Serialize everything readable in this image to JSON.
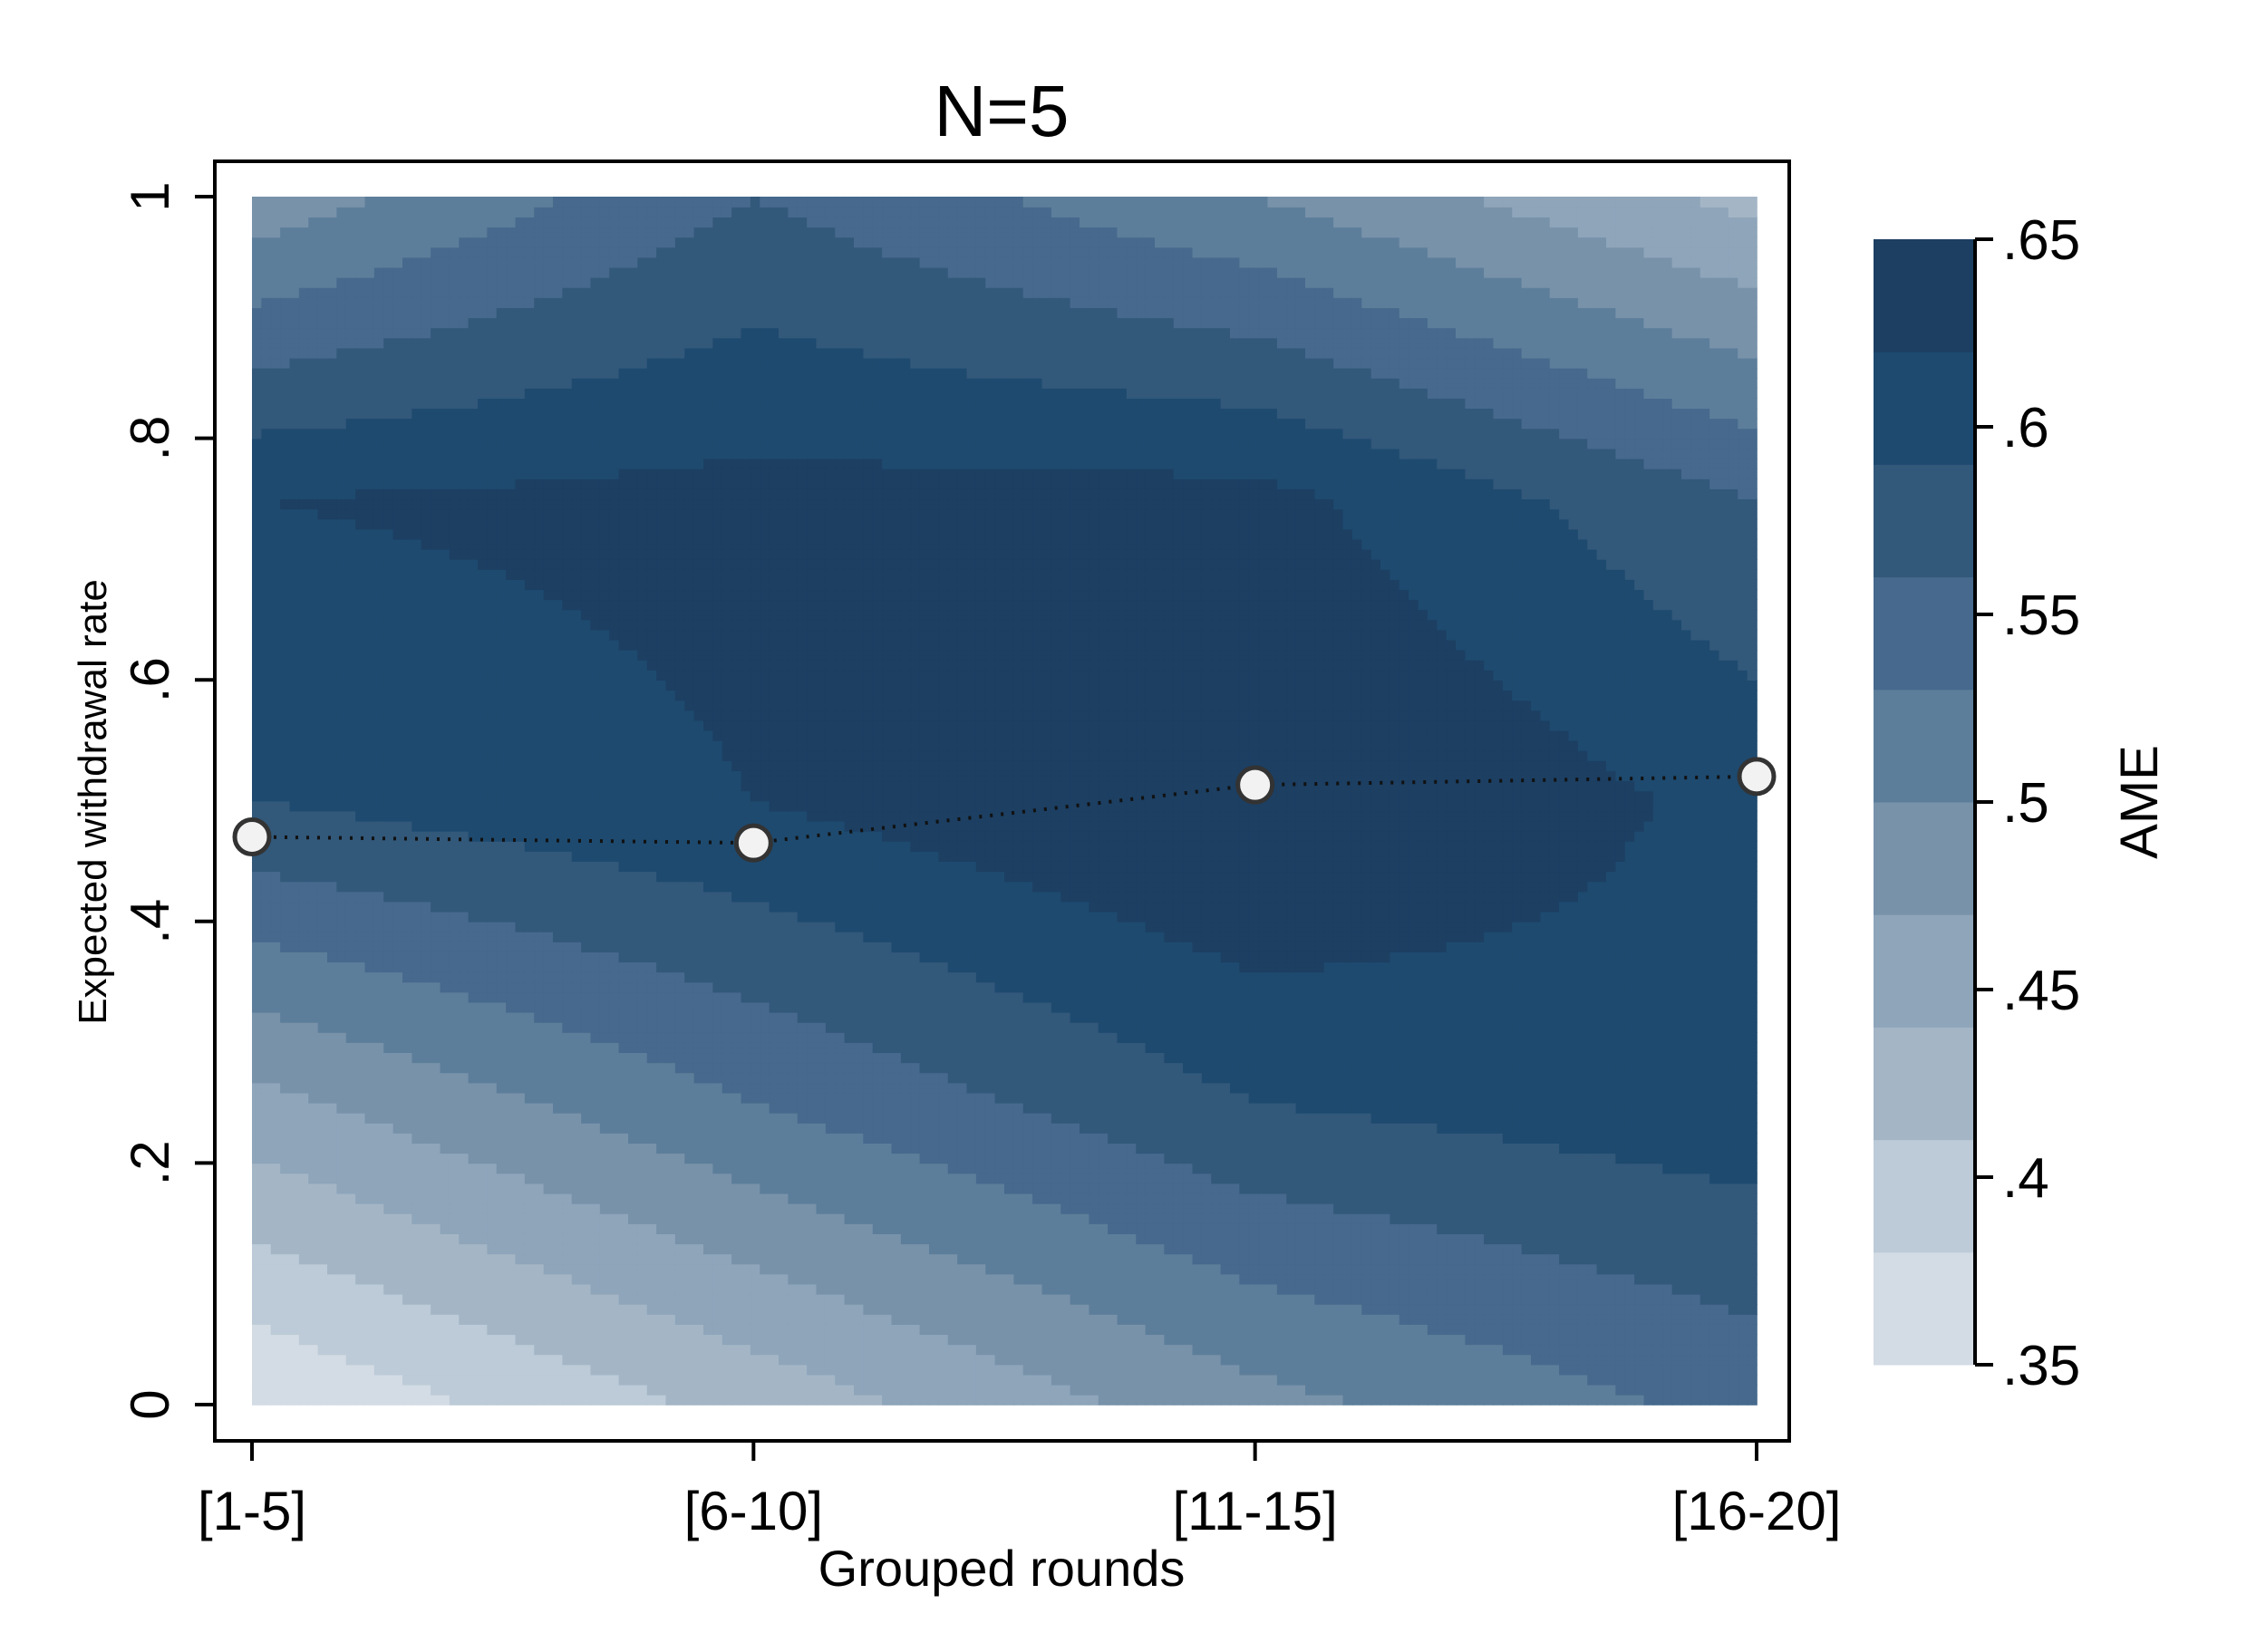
{
  "chart_data": {
    "type": "heatmap",
    "subtype": "contour",
    "title": "N=5",
    "xlabel": "Grouped rounds",
    "ylabel": "Expected withdrawal rate",
    "x_categories": [
      "[1-5]",
      "[6-10]",
      "[11-15]",
      "[16-20]"
    ],
    "y_ticks": [
      {
        "value": 0,
        "label": "0"
      },
      {
        "value": 0.2,
        "label": ".2"
      },
      {
        "value": 0.4,
        "label": ".4"
      },
      {
        "value": 0.6,
        "label": ".6"
      },
      {
        "value": 0.8,
        "label": ".8"
      },
      {
        "value": 1,
        "label": "1"
      }
    ],
    "ylim": [
      0,
      1
    ],
    "grid": false,
    "contour": {
      "y_values": [
        0,
        0.25,
        0.5,
        0.75,
        1
      ],
      "z": [
        [
          0.35,
          0.46,
          0.59,
          0.62,
          0.48
        ],
        [
          0.42,
          0.53,
          0.62,
          0.63,
          0.56
        ],
        [
          0.49,
          0.59,
          0.66,
          0.63,
          0.5
        ],
        [
          0.54,
          0.61,
          0.61,
          0.56,
          0.43
        ],
        [
          0.51,
          0.62,
          0.61,
          0.56,
          0.36
        ]
      ]
    },
    "series": [
      {
        "type": "line",
        "style": "dotted",
        "marker": "circle",
        "values": [
          0.47,
          0.465,
          0.513,
          0.52
        ]
      }
    ],
    "legend": {
      "title": "AME",
      "position": "right",
      "min": 0.35,
      "max": 0.65,
      "bins": [
        {
          "from": 0.35,
          "to": 0.38,
          "color": "#d3dbe4"
        },
        {
          "from": 0.38,
          "to": 0.41,
          "color": "#bccbd7"
        },
        {
          "from": 0.41,
          "to": 0.44,
          "color": "#a4b6c6"
        },
        {
          "from": 0.44,
          "to": 0.47,
          "color": "#8ea5ba"
        },
        {
          "from": 0.47,
          "to": 0.5,
          "color": "#7892aa"
        },
        {
          "from": 0.5,
          "to": 0.53,
          "color": "#5d7e9a"
        },
        {
          "from": 0.53,
          "to": 0.56,
          "color": "#46698d"
        },
        {
          "from": 0.56,
          "to": 0.59,
          "color": "#32587a"
        },
        {
          "from": 0.59,
          "to": 0.62,
          "color": "#1e4a6f"
        },
        {
          "from": 0.62,
          "to": 0.65,
          "color": "#1c3f62"
        }
      ],
      "ticks": [
        {
          "value": 0.35,
          "label": ".35"
        },
        {
          "value": 0.4,
          "label": ".4"
        },
        {
          "value": 0.45,
          "label": ".45"
        },
        {
          "value": 0.5,
          "label": ".5"
        },
        {
          "value": 0.55,
          "label": ".55"
        },
        {
          "value": 0.6,
          "label": ".6"
        },
        {
          "value": 0.65,
          "label": ".65"
        }
      ]
    },
    "colors": {
      "line": "#111111",
      "marker_fill": "#f2f2f2",
      "marker_edge": "#333333",
      "frame": "#000000"
    }
  }
}
